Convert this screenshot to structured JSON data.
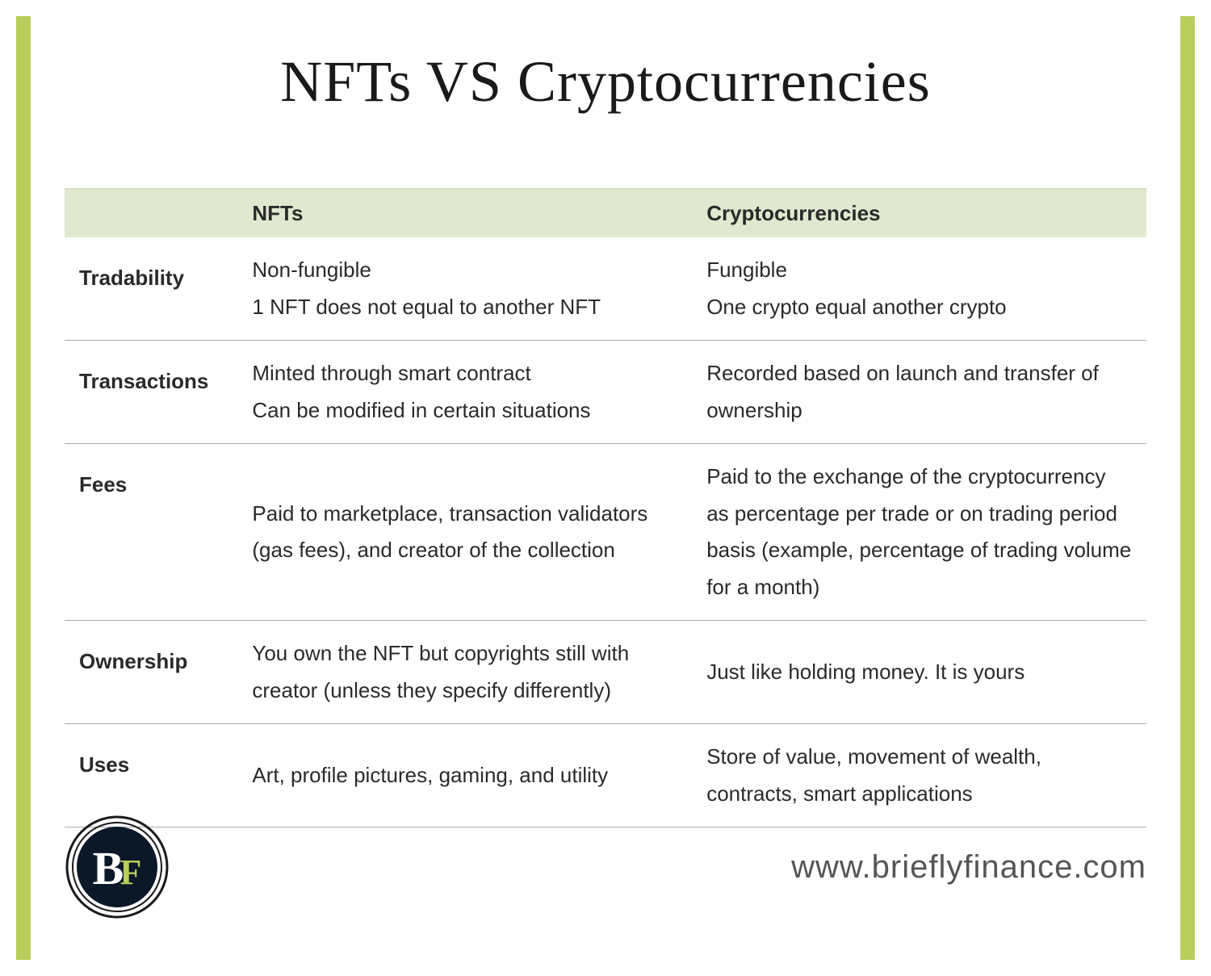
{
  "title": "NFTs VS Cryptocurrencies",
  "table": {
    "columns": [
      "",
      "NFTs",
      "Cryptocurrencies"
    ],
    "header_bg_color": "#e0e9d0",
    "border_color": "#aaaaaa",
    "font_size": 26,
    "rows": [
      {
        "label": "Tradability",
        "nft": "Non-fungible\n1 NFT does not equal to another NFT",
        "crypto": "Fungible\nOne crypto equal another crypto"
      },
      {
        "label": "Transactions",
        "nft": "Minted through smart contract\nCan be modified in certain situations",
        "crypto": "Recorded based on launch and transfer of ownership"
      },
      {
        "label": "Fees",
        "nft": "Paid to marketplace, transaction validators (gas fees), and creator of the collection",
        "crypto": "Paid to the exchange of the cryptocurrency as percentage per trade or on trading period basis (example, percentage of trading volume for a month)"
      },
      {
        "label": "Ownership",
        "nft": "You own the NFT but copyrights still with creator (unless they specify differently)",
        "crypto": "Just like holding money. It is yours"
      },
      {
        "label": "Uses",
        "nft": "Art, profile pictures, gaming, and utility",
        "crypto": "Store of value, movement of wealth, contracts, smart applications"
      }
    ]
  },
  "border_color": "#b8cd5a",
  "logo": {
    "bg_color": "#0a1828",
    "ring_color": "#ffffff",
    "accent_color": "#b8cd5a",
    "text": "BF"
  },
  "website": "www.brieflyfinance.com"
}
